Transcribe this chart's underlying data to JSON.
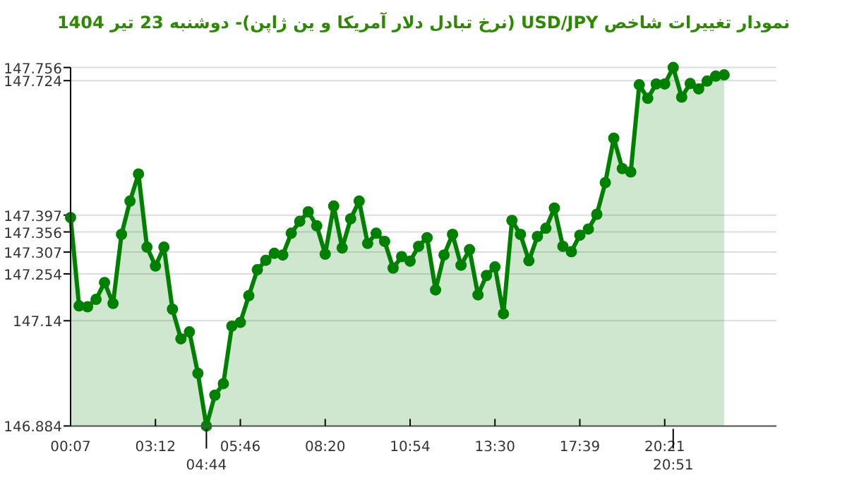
{
  "chart_data": {
    "type": "area",
    "title": "نمودار تغییرات شاخص USD/JPY (نرخ تبادل دلار آمریکا و ین ژاپن)- دوشنبه  23 تیر 1404",
    "categories": [
      "00:07",
      null,
      null,
      null,
      null,
      null,
      null,
      null,
      null,
      null,
      "03:12",
      null,
      null,
      null,
      null,
      null,
      "04:44",
      null,
      null,
      null,
      "05:46",
      null,
      null,
      null,
      null,
      null,
      null,
      null,
      null,
      null,
      "08:20",
      null,
      null,
      null,
      null,
      null,
      null,
      null,
      null,
      null,
      "10:54",
      null,
      null,
      null,
      null,
      null,
      null,
      null,
      null,
      null,
      "13:30",
      null,
      null,
      null,
      null,
      null,
      null,
      null,
      null,
      null,
      "17:39",
      null,
      null,
      null,
      null,
      null,
      null,
      null,
      null,
      null,
      "20:21",
      "20:51",
      null,
      null,
      null,
      null,
      null,
      null
    ],
    "series": [
      {
        "color": "#008000",
        "values": [
          147.391,
          147.176,
          147.174,
          147.192,
          147.233,
          147.182,
          147.35,
          147.431,
          147.497,
          147.319,
          147.273,
          147.319,
          147.168,
          147.096,
          147.113,
          147.012,
          146.884,
          146.959,
          146.987,
          147.127,
          147.136,
          147.201,
          147.264,
          147.287,
          147.304,
          147.3,
          147.353,
          147.382,
          147.405,
          147.371,
          147.302,
          147.419,
          147.317,
          147.388,
          147.431,
          147.328,
          147.353,
          147.333,
          147.268,
          147.296,
          147.285,
          147.321,
          147.342,
          147.215,
          147.3,
          147.35,
          147.275,
          147.313,
          147.203,
          147.25,
          147.271,
          147.157,
          147.384,
          147.35,
          147.286,
          147.345,
          147.365,
          147.414,
          147.321,
          147.308,
          147.348,
          147.363,
          147.399,
          147.476,
          147.584,
          147.51,
          147.502,
          147.714,
          147.681,
          147.716,
          147.716,
          147.756,
          147.684,
          147.717,
          147.704,
          147.723,
          147.735,
          147.738
        ]
      }
    ],
    "ylim": [
      146.884,
      147.756
    ],
    "yticks": [
      146.884,
      147.14,
      147.254,
      147.307,
      147.356,
      147.397,
      147.724,
      147.756
    ],
    "grid": "y",
    "marker": "circle",
    "line_style": "solid"
  }
}
